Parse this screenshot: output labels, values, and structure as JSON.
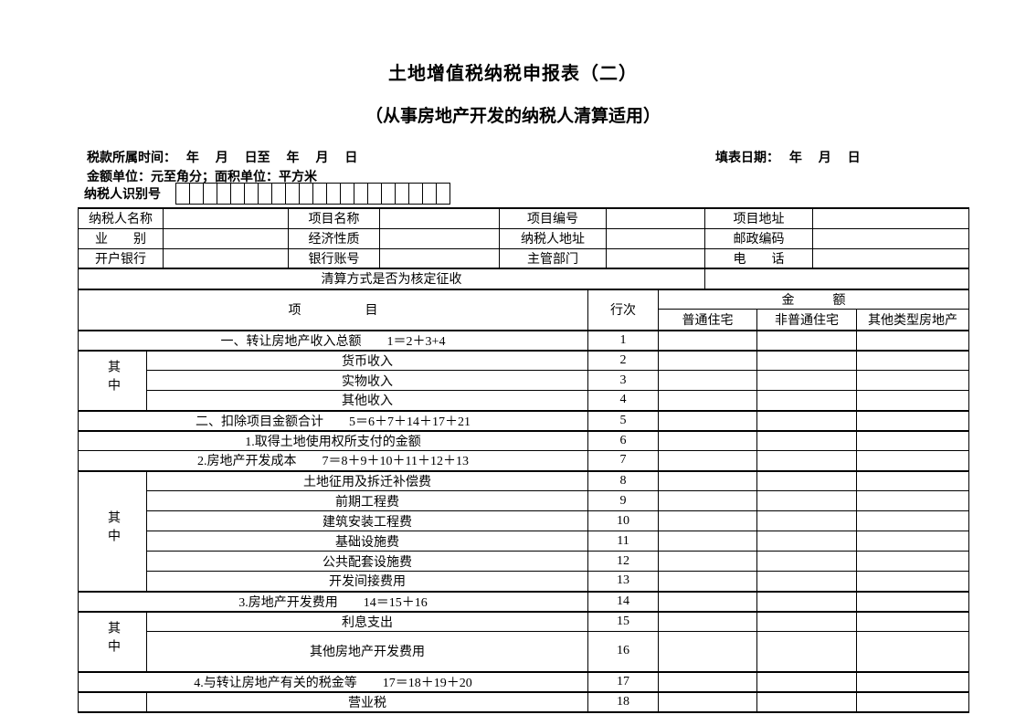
{
  "page": {
    "title": "土地增值税纳税申报表（二）",
    "subtitle": "（从事房地产开发的纳税人清算适用）"
  },
  "meta": {
    "tax_period_label": "税款所属时间：　 年　 月　 日至　 年　 月　 日",
    "fill_date_label": "填表日期：　 年　 月　 日",
    "unit_note": "金额单位：元至角分；面积单位：平方米",
    "taxpayer_id_label": "纳税人识别号",
    "taxpayer_id_box_count": 20
  },
  "info_table": {
    "rows": [
      [
        "纳税人名称",
        "",
        "项目名称",
        "",
        "项目编号",
        "",
        "项目地址",
        ""
      ],
      [
        "业　　别",
        "",
        "经济性质",
        "",
        "纳税人地址",
        "",
        "邮政编码",
        ""
      ],
      [
        "开户银行",
        "",
        "银行账号",
        "",
        "主管部门",
        "",
        "电　　话",
        ""
      ]
    ],
    "liquidation_label": "清算方式是否为核定征收"
  },
  "main_table": {
    "header": {
      "item": "项　　　　　目",
      "line_no": "行次",
      "amount_group": "金　　　额",
      "amount_cols": [
        "普通住宅",
        "非普通住宅",
        "其他类型房地产"
      ]
    },
    "side_label": "其中",
    "rows": [
      {
        "label": "一、转让房地产收入总额　　1＝2＋3+4",
        "line": "1"
      },
      {
        "label": "货币收入",
        "line": "2"
      },
      {
        "label": "实物收入",
        "line": "3"
      },
      {
        "label": "其他收入",
        "line": "4"
      },
      {
        "label": "二、扣除项目金额合计　　5＝6＋7＋14＋17＋21",
        "line": "5"
      },
      {
        "label": "1.取得土地使用权所支付的金额",
        "line": "6"
      },
      {
        "label": "2.房地产开发成本　　7＝8＋9＋10＋11＋12＋13",
        "line": "7"
      },
      {
        "label": "土地征用及拆迁补偿费",
        "line": "8"
      },
      {
        "label": "前期工程费",
        "line": "9"
      },
      {
        "label": "建筑安装工程费",
        "line": "10"
      },
      {
        "label": "基础设施费",
        "line": "11"
      },
      {
        "label": "公共配套设施费",
        "line": "12"
      },
      {
        "label": "开发间接费用",
        "line": "13"
      },
      {
        "label": "3.房地产开发费用　　14＝15＋16",
        "line": "14"
      },
      {
        "label": "利息支出",
        "line": "15"
      },
      {
        "label": "其他房地产开发费用",
        "line": "16"
      },
      {
        "label": "4.与转让房地产有关的税金等　　17＝18＋19＋20",
        "line": "17"
      },
      {
        "label": "营业税",
        "line": "18"
      }
    ]
  }
}
